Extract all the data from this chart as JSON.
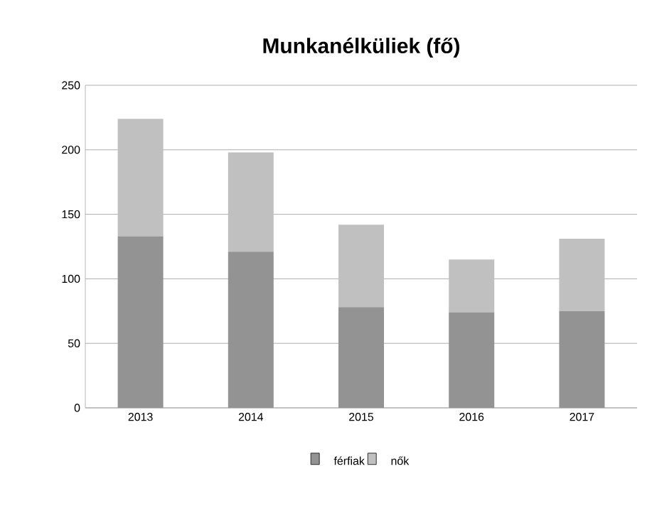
{
  "chart_data": {
    "type": "bar",
    "title": "Munkanélküliek (fő)",
    "stacked": true,
    "categories": [
      "2013",
      "2014",
      "2015",
      "2016",
      "2017"
    ],
    "series": [
      {
        "name": "férfiak",
        "color": "#939393",
        "values": [
          133,
          121,
          78,
          74,
          75
        ]
      },
      {
        "name": "nők",
        "color": "#c0c0c0",
        "values": [
          91,
          77,
          64,
          41,
          56
        ]
      }
    ],
    "ylim": [
      0,
      250
    ],
    "yticks": [
      0,
      50,
      100,
      150,
      200,
      250
    ],
    "grid": "y",
    "legend": "bottom"
  }
}
